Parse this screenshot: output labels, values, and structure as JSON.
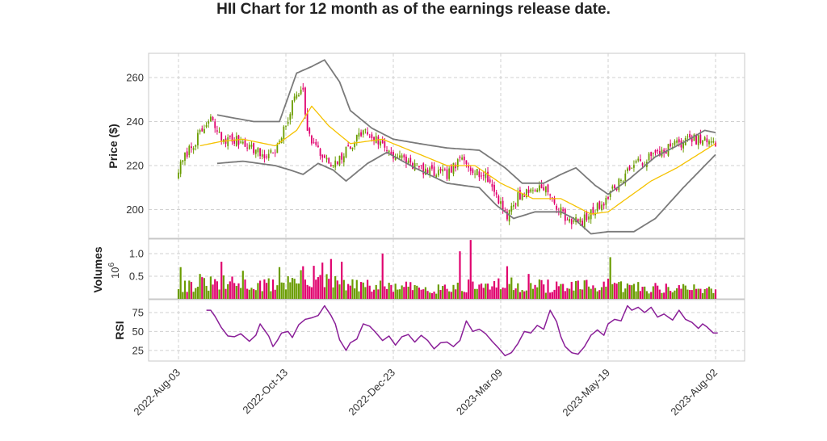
{
  "chart_data": {
    "type": "candlestick",
    "title": "HII Chart for 12 month as of the earnings release date.",
    "x_tick_labels": [
      "2022-Aug-03",
      "2022-Oct-13",
      "2022-Dec-23",
      "2023-Mar-09",
      "2023-May-19",
      "2023-Aug-02"
    ],
    "x_tick_index": [
      0,
      50,
      100,
      150,
      200,
      250
    ],
    "grid": true,
    "colors": {
      "up": "#6a9c00",
      "down": "#e0006e",
      "ma": "#f5c200",
      "bands": "#7a7a7a",
      "rsi": "#8a1f98"
    },
    "price_panel": {
      "ylabel": "Price ($)",
      "ylim": [
        187,
        271
      ],
      "yticks": [
        200,
        220,
        240,
        260
      ],
      "close_anchors": [
        [
          0,
          218
        ],
        [
          4,
          226
        ],
        [
          10,
          234
        ],
        [
          15,
          241
        ],
        [
          20,
          232
        ],
        [
          30,
          231
        ],
        [
          40,
          224
        ],
        [
          46,
          228
        ],
        [
          50,
          238
        ],
        [
          54,
          251
        ],
        [
          58,
          256
        ],
        [
          60,
          235
        ],
        [
          66,
          225
        ],
        [
          72,
          219
        ],
        [
          80,
          229
        ],
        [
          86,
          236
        ],
        [
          93,
          231
        ],
        [
          100,
          225
        ],
        [
          108,
          221
        ],
        [
          116,
          217
        ],
        [
          125,
          216
        ],
        [
          132,
          223
        ],
        [
          138,
          218
        ],
        [
          144,
          214
        ],
        [
          150,
          203
        ],
        [
          153,
          197
        ],
        [
          158,
          206
        ],
        [
          165,
          209
        ],
        [
          170,
          211
        ],
        [
          176,
          201
        ],
        [
          181,
          196
        ],
        [
          187,
          194
        ],
        [
          192,
          198
        ],
        [
          198,
          204
        ],
        [
          204,
          211
        ],
        [
          210,
          219
        ],
        [
          216,
          222
        ],
        [
          224,
          226
        ],
        [
          232,
          230
        ],
        [
          240,
          232
        ],
        [
          246,
          231
        ],
        [
          250,
          229
        ]
      ],
      "ma_anchors": [
        [
          10,
          229
        ],
        [
          20,
          231
        ],
        [
          30,
          232
        ],
        [
          45,
          229
        ],
        [
          55,
          236
        ],
        [
          62,
          247
        ],
        [
          70,
          238
        ],
        [
          80,
          230
        ],
        [
          95,
          232
        ],
        [
          110,
          226
        ],
        [
          125,
          220
        ],
        [
          138,
          220
        ],
        [
          150,
          212
        ],
        [
          165,
          205
        ],
        [
          178,
          205
        ],
        [
          192,
          198
        ],
        [
          200,
          199
        ],
        [
          210,
          206
        ],
        [
          220,
          213
        ],
        [
          232,
          219
        ],
        [
          250,
          230
        ]
      ],
      "upper_band_anchors": [
        [
          18,
          243
        ],
        [
          35,
          240
        ],
        [
          47,
          240
        ],
        [
          55,
          262
        ],
        [
          62,
          265
        ],
        [
          68,
          268
        ],
        [
          75,
          258
        ],
        [
          80,
          245
        ],
        [
          90,
          237
        ],
        [
          100,
          232
        ],
        [
          112,
          230
        ],
        [
          125,
          228
        ],
        [
          140,
          227
        ],
        [
          152,
          219
        ],
        [
          160,
          212
        ],
        [
          170,
          212
        ],
        [
          178,
          216
        ],
        [
          185,
          219
        ],
        [
          194,
          211
        ],
        [
          200,
          207
        ],
        [
          210,
          214
        ],
        [
          222,
          224
        ],
        [
          236,
          231
        ],
        [
          245,
          236
        ],
        [
          250,
          235
        ]
      ],
      "lower_band_anchors": [
        [
          18,
          221
        ],
        [
          30,
          222
        ],
        [
          45,
          220
        ],
        [
          52,
          218
        ],
        [
          58,
          216
        ],
        [
          65,
          221
        ],
        [
          72,
          218
        ],
        [
          78,
          213
        ],
        [
          88,
          221
        ],
        [
          97,
          226
        ],
        [
          110,
          219
        ],
        [
          125,
          212
        ],
        [
          140,
          210
        ],
        [
          148,
          202
        ],
        [
          156,
          196
        ],
        [
          166,
          199
        ],
        [
          178,
          199
        ],
        [
          184,
          196
        ],
        [
          192,
          189
        ],
        [
          200,
          190
        ],
        [
          212,
          190
        ],
        [
          222,
          196
        ],
        [
          235,
          210
        ],
        [
          245,
          220
        ],
        [
          250,
          225
        ]
      ]
    },
    "volume_panel": {
      "ylabel": "Volumes",
      "exponent_label": "10",
      "exponent_power": "6",
      "ylim": [
        0,
        1.32
      ],
      "yticks": [
        0.5,
        1.0
      ],
      "vol_anchors": [
        [
          0,
          0.3
        ],
        [
          20,
          0.35
        ],
        [
          40,
          0.3
        ],
        [
          60,
          0.45
        ],
        [
          80,
          0.3
        ],
        [
          100,
          0.26
        ],
        [
          120,
          0.25
        ],
        [
          140,
          0.3
        ],
        [
          160,
          0.32
        ],
        [
          180,
          0.26
        ],
        [
          200,
          0.3
        ],
        [
          220,
          0.25
        ],
        [
          250,
          0.22
        ]
      ],
      "spikes": [
        [
          1,
          0.7
        ],
        [
          10,
          0.55
        ],
        [
          20,
          0.82
        ],
        [
          30,
          0.62
        ],
        [
          47,
          0.7
        ],
        [
          58,
          0.72
        ],
        [
          63,
          0.73
        ],
        [
          67,
          0.8
        ],
        [
          71,
          0.88
        ],
        [
          76,
          0.82
        ],
        [
          95,
          1.0
        ],
        [
          131,
          1.05
        ],
        [
          136,
          1.3
        ],
        [
          153,
          0.72
        ],
        [
          163,
          0.55
        ],
        [
          201,
          0.92
        ]
      ]
    },
    "rsi_panel": {
      "ylabel": "RSI",
      "ylim": [
        12,
        92
      ],
      "yticks": [
        25,
        50,
        75
      ],
      "start_index": 13,
      "rsi_anchors": [
        [
          13,
          78
        ],
        [
          15,
          78
        ],
        [
          17,
          70
        ],
        [
          20,
          55
        ],
        [
          23,
          44
        ],
        [
          26,
          43
        ],
        [
          29,
          47
        ],
        [
          33,
          37
        ],
        [
          36,
          45
        ],
        [
          38,
          60
        ],
        [
          40,
          52
        ],
        [
          42,
          44
        ],
        [
          44,
          30
        ],
        [
          46,
          38
        ],
        [
          48,
          48
        ],
        [
          51,
          50
        ],
        [
          53,
          42
        ],
        [
          56,
          59
        ],
        [
          59,
          66
        ],
        [
          62,
          68
        ],
        [
          65,
          71
        ],
        [
          68,
          84
        ],
        [
          71,
          71
        ],
        [
          73,
          60
        ],
        [
          75,
          39
        ],
        [
          78,
          25
        ],
        [
          80,
          35
        ],
        [
          83,
          40
        ],
        [
          86,
          60
        ],
        [
          89,
          57
        ],
        [
          92,
          48
        ],
        [
          95,
          38
        ],
        [
          98,
          44
        ],
        [
          101,
          32
        ],
        [
          104,
          43
        ],
        [
          107,
          46
        ],
        [
          110,
          36
        ],
        [
          113,
          45
        ],
        [
          116,
          38
        ],
        [
          119,
          27
        ],
        [
          122,
          35
        ],
        [
          125,
          36
        ],
        [
          128,
          30
        ],
        [
          131,
          38
        ],
        [
          134,
          64
        ],
        [
          137,
          50
        ],
        [
          140,
          53
        ],
        [
          143,
          47
        ],
        [
          146,
          37
        ],
        [
          149,
          28
        ],
        [
          152,
          18
        ],
        [
          155,
          22
        ],
        [
          158,
          34
        ],
        [
          161,
          50
        ],
        [
          164,
          48
        ],
        [
          167,
          58
        ],
        [
          170,
          53
        ],
        [
          173,
          78
        ],
        [
          176,
          63
        ],
        [
          178,
          43
        ],
        [
          180,
          30
        ],
        [
          183,
          22
        ],
        [
          186,
          20
        ],
        [
          189,
          30
        ],
        [
          192,
          45
        ],
        [
          195,
          52
        ],
        [
          198,
          45
        ],
        [
          200,
          60
        ],
        [
          203,
          66
        ],
        [
          206,
          64
        ],
        [
          209,
          84
        ],
        [
          211,
          78
        ],
        [
          214,
          82
        ],
        [
          217,
          75
        ],
        [
          220,
          82
        ],
        [
          223,
          69
        ],
        [
          226,
          73
        ],
        [
          230,
          65
        ],
        [
          233,
          78
        ],
        [
          236,
          66
        ],
        [
          239,
          62
        ],
        [
          242,
          54
        ],
        [
          244,
          60
        ],
        [
          246,
          56
        ],
        [
          249,
          48
        ],
        [
          251,
          48
        ]
      ]
    }
  }
}
